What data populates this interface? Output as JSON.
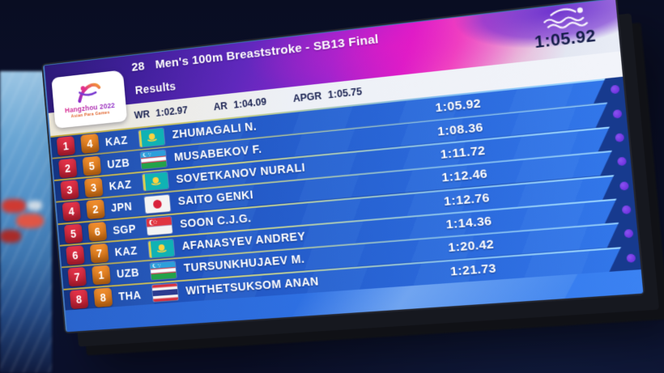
{
  "event_bar": {
    "event_number": "28",
    "event_title": "Men's 100m Breaststroke - SB13 Final",
    "display_time": "1:05.92"
  },
  "header": {
    "section_label": "Results",
    "logo": {
      "title": "Hangzhou 2022",
      "subtitle": "Asian Para Games"
    },
    "records": [
      {
        "label": "WR",
        "time": "1:02.97"
      },
      {
        "label": "AR",
        "time": "1:04.09"
      },
      {
        "label": "APGR",
        "time": "1:05.75"
      }
    ]
  },
  "results": {
    "rows": [
      {
        "rank": "1",
        "lane": "4",
        "noc": "KAZ",
        "flag": "KAZ",
        "name": "ZHUMAGALI N.",
        "time": "1:05.92"
      },
      {
        "rank": "2",
        "lane": "5",
        "noc": "UZB",
        "flag": "UZB",
        "name": "MUSABEKOV F.",
        "time": "1:08.36"
      },
      {
        "rank": "3",
        "lane": "3",
        "noc": "KAZ",
        "flag": "KAZ",
        "name": "SOVETKANOV NURALI",
        "time": "1:11.72"
      },
      {
        "rank": "4",
        "lane": "2",
        "noc": "JPN",
        "flag": "JPN",
        "name": "SAITO GENKI",
        "time": "1:12.46"
      },
      {
        "rank": "5",
        "lane": "6",
        "noc": "SGP",
        "flag": "SGP",
        "name": "SOON C.J.G.",
        "time": "1:12.76"
      },
      {
        "rank": "6",
        "lane": "7",
        "noc": "KAZ",
        "flag": "KAZ",
        "name": "AFANASYEV ANDREY",
        "time": "1:14.36"
      },
      {
        "rank": "7",
        "lane": "1",
        "noc": "UZB",
        "flag": "UZB",
        "name": "TURSUNKHUJAEV M.",
        "time": "1:20.42"
      },
      {
        "rank": "8",
        "lane": "8",
        "noc": "THA",
        "flag": "THA",
        "name": "WITHETSUKSOM ANAN",
        "time": "1:21.73"
      }
    ]
  },
  "icons": {
    "swimmer": "swimmer-pictogram",
    "emblem": "hangzhou-2022-emblem"
  },
  "colors": {
    "rank_badge": "#d8293d",
    "lane_badge": "#e5821f",
    "row_blue": "#2762d2",
    "header_purple": "#5f28bc",
    "header_magenta": "#d91cc9",
    "records_band": "#edf0f6",
    "separator_gold": "#bfa437",
    "end_dot_violet": "#6d2fe3",
    "time_text": "#ffffff",
    "header_time_text": "#141c48"
  }
}
